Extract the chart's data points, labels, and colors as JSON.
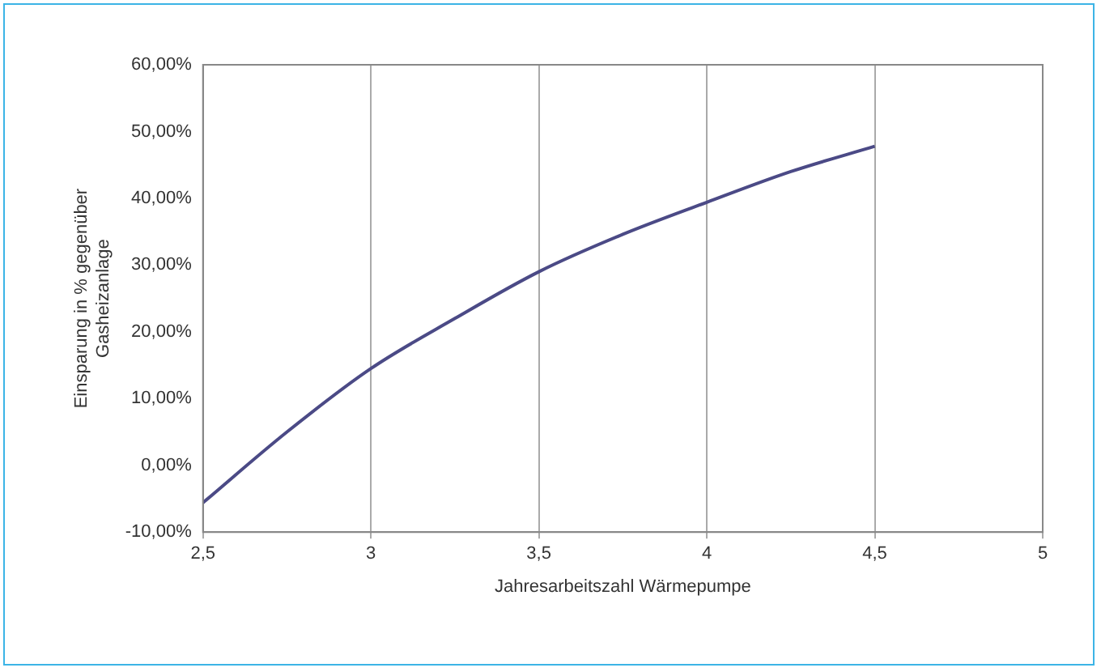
{
  "chart_data": {
    "type": "line",
    "xlabel": "Jahresarbeitszahl Wärmepumpe",
    "ylabel": "Einsparung in % gegenüber Gasheizanlage",
    "x": [
      2.5,
      2.75,
      3,
      3.25,
      3.5,
      3.75,
      4,
      4.25,
      4.5
    ],
    "series": [
      {
        "color": "#4b4a86",
        "values": [
          -5.6,
          5,
          14.5,
          22,
          29,
          34.6,
          39.4,
          44,
          47.8
        ]
      }
    ],
    "xlim": [
      2.5,
      5
    ],
    "xticks": [
      {
        "value": 2.5,
        "label": "2,5"
      },
      3,
      {
        "value": 3.5,
        "label": "3,5"
      },
      4,
      {
        "value": 4.5,
        "label": "4,5"
      },
      5
    ],
    "ylim": [
      -10,
      60
    ],
    "yticks": [
      {
        "value": -10,
        "label": "-10,00%"
      },
      {
        "value": 0,
        "label": "0,00%"
      },
      {
        "value": 10,
        "label": "10,00%"
      },
      {
        "value": 20,
        "label": "20,00%"
      },
      {
        "value": 30,
        "label": "30,00%"
      },
      {
        "value": 40,
        "label": "40,00%"
      },
      {
        "value": 50,
        "label": "50,00%"
      },
      {
        "value": 60,
        "label": "60,00%"
      }
    ],
    "grid": "x",
    "legend": false,
    "marker": "none",
    "line_style": "solid"
  }
}
